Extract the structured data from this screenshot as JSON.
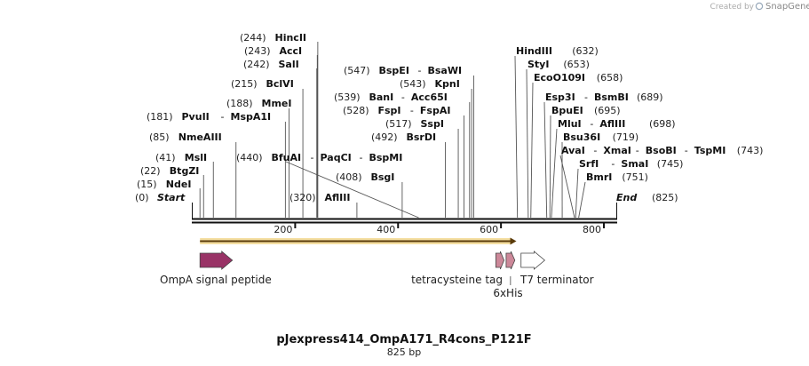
{
  "credit": {
    "prefix": "Created by",
    "brand": "SnapGene"
  },
  "sequence": {
    "name": "pJexpress414_OmpA171_R4cons_P121F",
    "length_label": "825 bp",
    "length": 825
  },
  "ruler": {
    "ticks": [
      200,
      400,
      600,
      800
    ]
  },
  "ends": {
    "start_label": "Start",
    "start_pos": "(0)",
    "end_label": "End",
    "end_pos": "(825)"
  },
  "sites": [
    {
      "id": "ndei",
      "pos": 15,
      "pos_label": "(15)",
      "names": [
        "NdeI"
      ]
    },
    {
      "id": "btgzi",
      "pos": 22,
      "pos_label": "(22)",
      "names": [
        "BtgZI"
      ]
    },
    {
      "id": "msli",
      "pos": 41,
      "pos_label": "(41)",
      "names": [
        "MslI"
      ]
    },
    {
      "id": "nmeaiii",
      "pos": 85,
      "pos_label": "(85)",
      "names": [
        "NmeAIII"
      ]
    },
    {
      "id": "pvuii",
      "pos": 181,
      "pos_label": "(181)",
      "names": [
        "PvuII",
        "MspA1I"
      ]
    },
    {
      "id": "mmei",
      "pos": 188,
      "pos_label": "(188)",
      "names": [
        "MmeI"
      ]
    },
    {
      "id": "bclvi",
      "pos": 215,
      "pos_label": "(215)",
      "names": [
        "BclVI"
      ]
    },
    {
      "id": "sali",
      "pos": 242,
      "pos_label": "(242)",
      "names": [
        "SalI"
      ]
    },
    {
      "id": "acci",
      "pos": 243,
      "pos_label": "(243)",
      "names": [
        "AccI"
      ]
    },
    {
      "id": "hincii",
      "pos": 244,
      "pos_label": "(244)",
      "names": [
        "HincII"
      ]
    },
    {
      "id": "afliii",
      "pos": 320,
      "pos_label": "(320)",
      "names": [
        "AflIII"
      ]
    },
    {
      "id": "bfuai",
      "pos": 440,
      "pos_label": "(440)",
      "names": [
        "BfuAI",
        "PaqCI",
        "BspMI"
      ]
    },
    {
      "id": "bsgi",
      "pos": 408,
      "pos_label": "(408)",
      "names": [
        "BsgI"
      ]
    },
    {
      "id": "bsrdi",
      "pos": 492,
      "pos_label": "(492)",
      "names": [
        "BsrDI"
      ]
    },
    {
      "id": "sspi",
      "pos": 517,
      "pos_label": "(517)",
      "names": [
        "SspI"
      ]
    },
    {
      "id": "fspi",
      "pos": 528,
      "pos_label": "(528)",
      "names": [
        "FspI",
        "FspAI"
      ]
    },
    {
      "id": "bani",
      "pos": 539,
      "pos_label": "(539)",
      "names": [
        "BanI",
        "Acc65I"
      ]
    },
    {
      "id": "kpni",
      "pos": 543,
      "pos_label": "(543)",
      "names": [
        "KpnI"
      ]
    },
    {
      "id": "bspei",
      "pos": 547,
      "pos_label": "(547)",
      "names": [
        "BspEI",
        "BsaWI"
      ]
    },
    {
      "id": "hindiii",
      "pos": 632,
      "pos_label": "(632)",
      "names": [
        "HindIII"
      ]
    },
    {
      "id": "styi",
      "pos": 653,
      "pos_label": "(653)",
      "names": [
        "StyI"
      ]
    },
    {
      "id": "ecoo109i",
      "pos": 658,
      "pos_label": "(658)",
      "names": [
        "EcoO109I"
      ]
    },
    {
      "id": "esp3i",
      "pos": 689,
      "pos_label": "(689)",
      "names": [
        "Esp3I",
        "BsmBI"
      ]
    },
    {
      "id": "bpuei",
      "pos": 695,
      "pos_label": "(695)",
      "names": [
        "BpuEI"
      ]
    },
    {
      "id": "mlui",
      "pos": 698,
      "pos_label": "(698)",
      "names": [
        "MluI",
        "AflIII"
      ]
    },
    {
      "id": "bsu36i",
      "pos": 719,
      "pos_label": "(719)",
      "names": [
        "Bsu36I"
      ]
    },
    {
      "id": "avai",
      "pos": 743,
      "pos_label": "(743)",
      "names": [
        "AvaI",
        "XmaI",
        "BsoBI",
        "TspMI"
      ]
    },
    {
      "id": "srfi",
      "pos": 745,
      "pos_label": "(745)",
      "names": [
        "SrfI",
        "SmaI"
      ]
    },
    {
      "id": "bmri",
      "pos": 751,
      "pos_label": "(751)",
      "names": [
        "BmrI"
      ]
    }
  ],
  "orf": {
    "start": 15,
    "end": 630,
    "color": "#e8b830"
  },
  "features": [
    {
      "id": "ompa",
      "label": "OmpA signal peptide",
      "start": 15,
      "end": 78,
      "color": "#993366"
    },
    {
      "id": "tetracys",
      "label": "tetracysteine tag",
      "start": 590,
      "end": 606,
      "color": "#cc8899"
    },
    {
      "id": "his6",
      "label": "6xHis",
      "start": 610,
      "end": 627,
      "color": "#cc8899"
    },
    {
      "id": "t7term",
      "label": "T7 terminator",
      "start": 639,
      "end": 685,
      "color": "#ffffff"
    }
  ]
}
